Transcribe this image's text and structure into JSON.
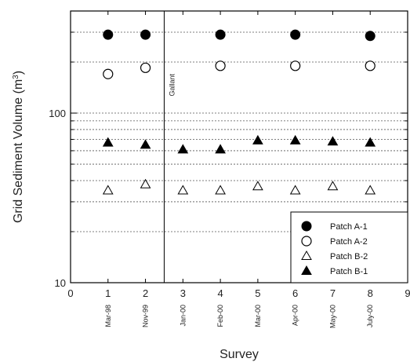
{
  "chart_data": {
    "type": "scatter",
    "xlabel": "Survey",
    "ylabel": "Grid Sediment Volume (m",
    "ylabel_sup": "3",
    "ylabel_close": ")",
    "xlim": [
      0,
      9
    ],
    "ylim": [
      10,
      400
    ],
    "yscale": "log",
    "x_ticks": [
      0,
      1,
      2,
      3,
      4,
      5,
      6,
      7,
      8,
      9
    ],
    "x_tick_labels": [
      "0",
      "1",
      "2",
      "3",
      "4",
      "5",
      "6",
      "7",
      "8",
      "9"
    ],
    "y_ticks": [
      10,
      100
    ],
    "y_tick_labels": [
      "10",
      "100"
    ],
    "grid": "horizontal dotted at minor log ticks",
    "survey_dates": [
      {
        "x": 1,
        "label": "Mar-98"
      },
      {
        "x": 2,
        "label": "Nov-99"
      },
      {
        "x": 3,
        "label": "Jan-00"
      },
      {
        "x": 4,
        "label": "Feb-00"
      },
      {
        "x": 5,
        "label": "Mar-00"
      },
      {
        "x": 6,
        "label": "Apr-00"
      },
      {
        "x": 7,
        "label": "May-00"
      },
      {
        "x": 8,
        "label": "July-00"
      }
    ],
    "annotation": {
      "text": "Gallant",
      "x": 2.5
    },
    "legend_position": "bottom-right",
    "series": [
      {
        "name": "Patch A-1",
        "marker": "filled-circle",
        "x": [
          1,
          2,
          4,
          6,
          8
        ],
        "y": [
          290,
          290,
          290,
          290,
          285
        ]
      },
      {
        "name": "Patch A-2",
        "marker": "open-circle",
        "x": [
          1,
          2,
          4,
          6,
          8
        ],
        "y": [
          170,
          185,
          190,
          190,
          190
        ]
      },
      {
        "name": "Patch B-2",
        "marker": "open-triangle",
        "x": [
          1,
          2,
          3,
          4,
          5,
          6,
          7,
          8
        ],
        "y": [
          35,
          38,
          35,
          35,
          37,
          35,
          37,
          35
        ]
      },
      {
        "name": "Patch B-1",
        "marker": "filled-triangle",
        "x": [
          1,
          2,
          3,
          4,
          5,
          6,
          7,
          8
        ],
        "y": [
          67,
          65,
          61,
          61,
          69,
          69,
          68,
          67
        ]
      }
    ]
  }
}
